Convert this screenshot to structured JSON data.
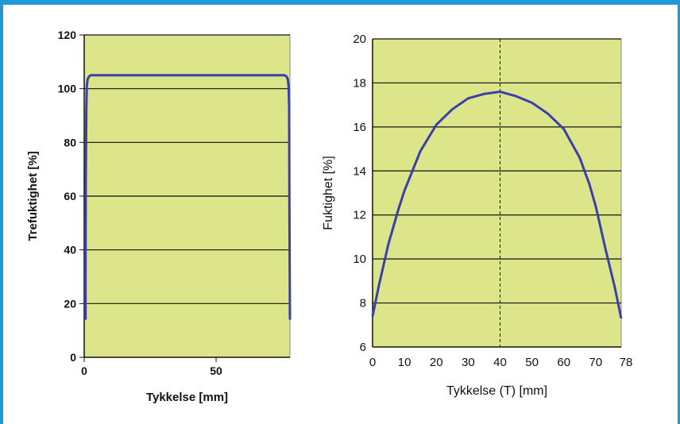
{
  "colors": {
    "frame": "#1f9ad6",
    "plot_bg": "#dde58a",
    "series": "#3b3fa8",
    "grid": "#111111"
  },
  "chart_data": [
    {
      "type": "line",
      "xlabel": "Tykkelse [mm]",
      "ylabel": "Trefuktighet [%]",
      "xlim": [
        0,
        78
      ],
      "ylim": [
        0,
        120
      ],
      "xticks": [
        0,
        50
      ],
      "yticks": [
        0,
        20,
        40,
        60,
        80,
        100,
        120
      ],
      "grid": "horizontal",
      "series": [
        {
          "x": [
            0.5,
            0.5,
            0.6,
            0.8,
            1.0,
            1.3,
            1.8,
            2.5,
            76.0,
            76.7,
            77.2,
            77.5,
            77.7,
            77.8,
            77.9,
            78.0
          ],
          "y": [
            14,
            32,
            66,
            93,
            101,
            103.5,
            104.5,
            105,
            105,
            104.5,
            103.5,
            101,
            93,
            58,
            32,
            14
          ]
        }
      ]
    },
    {
      "type": "line",
      "xlabel": "Tykkelse (T) [mm]",
      "ylabel": "Fuktighet [%]",
      "xlim": [
        0,
        78
      ],
      "ylim": [
        6,
        20
      ],
      "xticks": [
        0,
        10,
        20,
        30,
        40,
        50,
        60,
        70,
        78
      ],
      "yticks": [
        6,
        8,
        10,
        12,
        14,
        16,
        18,
        20
      ],
      "grid": "horizontal",
      "annotation": {
        "x": 40,
        "style": "dashed vertical line"
      },
      "series": [
        {
          "x": [
            0,
            2,
            5,
            8,
            10,
            15,
            20,
            25,
            30,
            35,
            40,
            45,
            50,
            55,
            60,
            65,
            68,
            70,
            73,
            76,
            78
          ],
          "y": [
            7.4,
            8.8,
            10.7,
            12.2,
            13.1,
            14.9,
            16.1,
            16.8,
            17.3,
            17.5,
            17.6,
            17.4,
            17.1,
            16.6,
            15.9,
            14.6,
            13.4,
            12.4,
            10.5,
            8.7,
            7.3
          ]
        }
      ]
    }
  ]
}
